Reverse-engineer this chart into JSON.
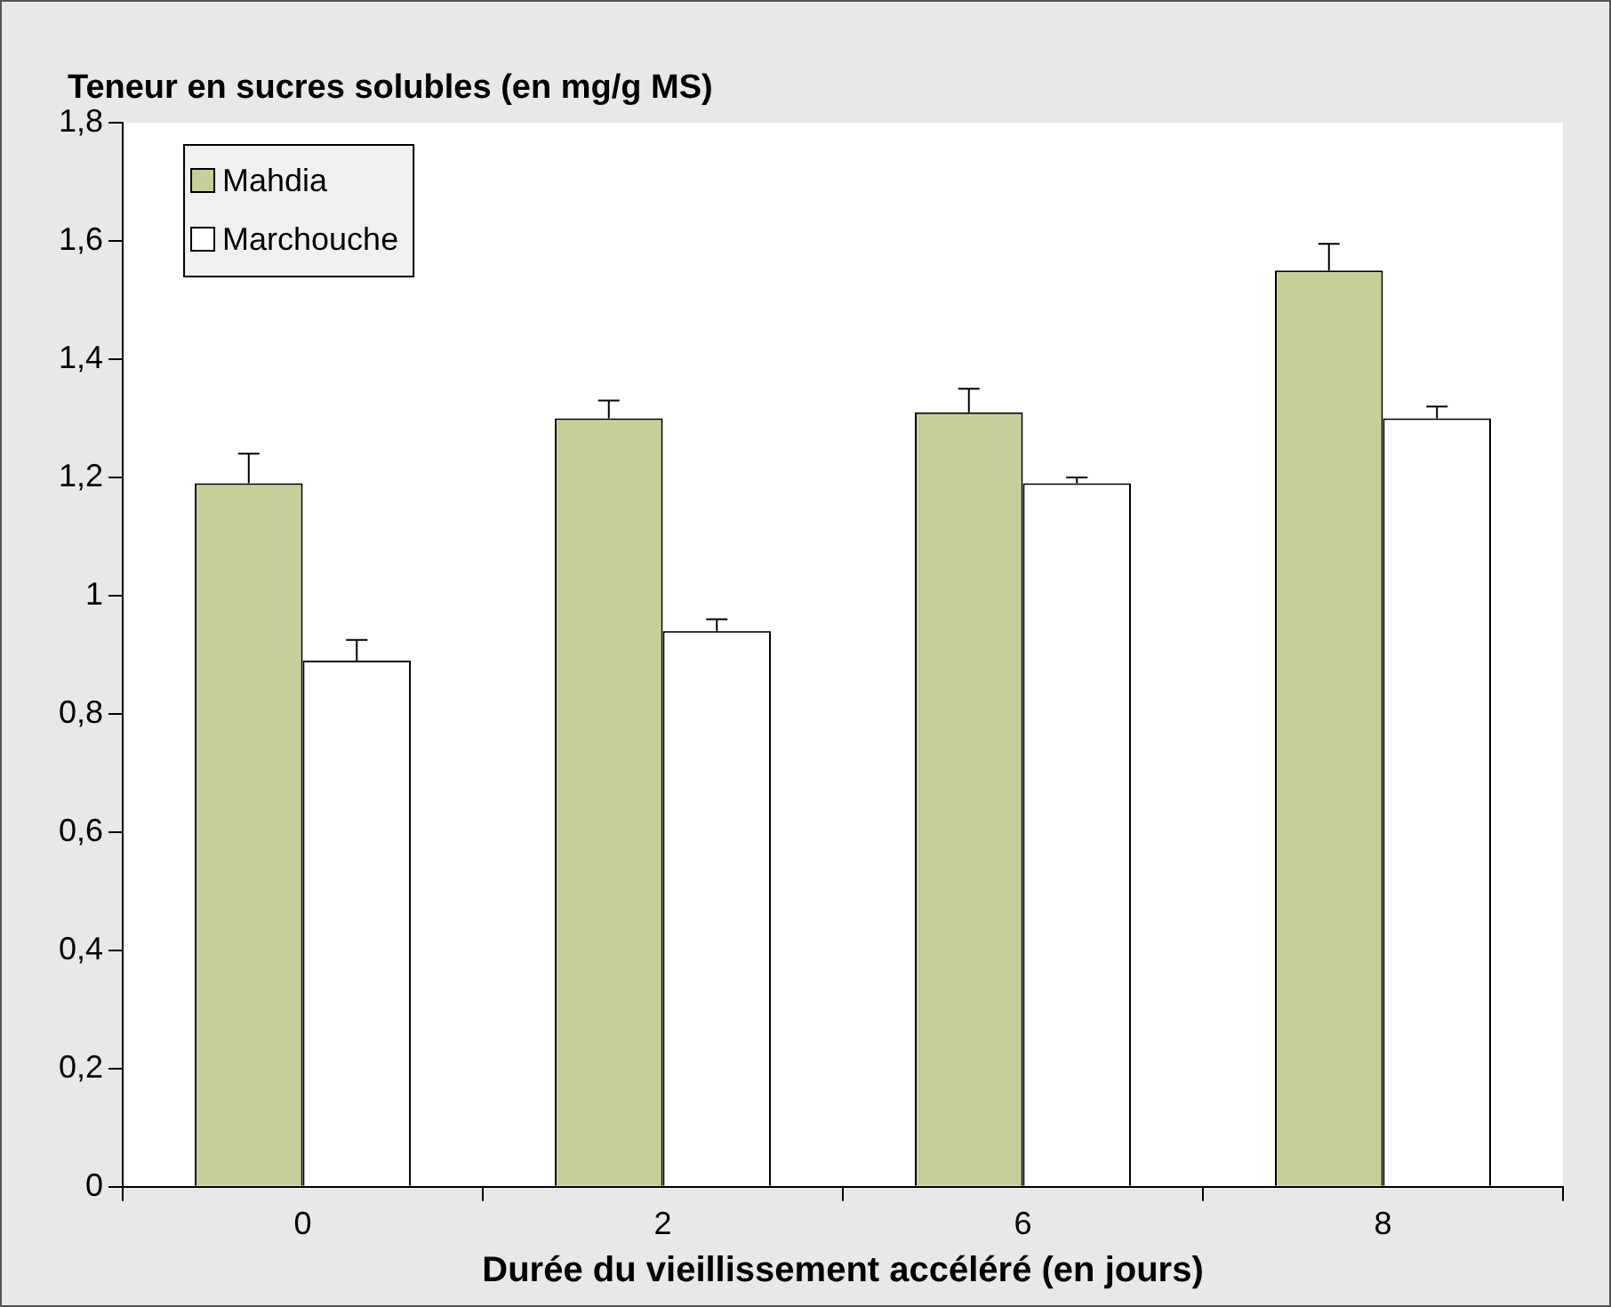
{
  "chart_data": {
    "type": "bar",
    "title": "Teneur en sucres solubles (en mg/g MS)",
    "xlabel": "Durée du vieillissement accéléré (en jours)",
    "categories": [
      "0",
      "2",
      "6",
      "8"
    ],
    "series": [
      {
        "name": "Mahdia",
        "color": "#c6cf9a",
        "values": [
          1.19,
          1.3,
          1.31,
          1.55
        ],
        "errors": [
          [
            1.19,
            1.24
          ],
          [
            1.3,
            1.33
          ],
          [
            1.31,
            1.35
          ],
          [
            1.55,
            1.595
          ]
        ]
      },
      {
        "name": "Marchouche",
        "color": "#ffffff",
        "values": [
          0.89,
          0.94,
          1.19,
          1.3
        ],
        "errors": [
          [
            0.89,
            0.925
          ],
          [
            0.94,
            0.96
          ],
          [
            1.19,
            1.2
          ],
          [
            1.3,
            1.32
          ]
        ]
      }
    ],
    "ylim": [
      0,
      1.8
    ],
    "yticks": [
      0,
      {
        "value": 0.2,
        "label": "0,2"
      },
      {
        "value": 0.4,
        "label": "0,4"
      },
      {
        "value": 0.6,
        "label": "0,6"
      },
      {
        "value": 0.8,
        "label": "0,8"
      },
      1,
      {
        "value": 1.2,
        "label": "1,2"
      },
      {
        "value": 1.4,
        "label": "1,4"
      },
      {
        "value": 1.6,
        "label": "1,6"
      },
      {
        "value": 1.8,
        "label": "1,8"
      }
    ],
    "grid": false,
    "legend": "top left"
  }
}
